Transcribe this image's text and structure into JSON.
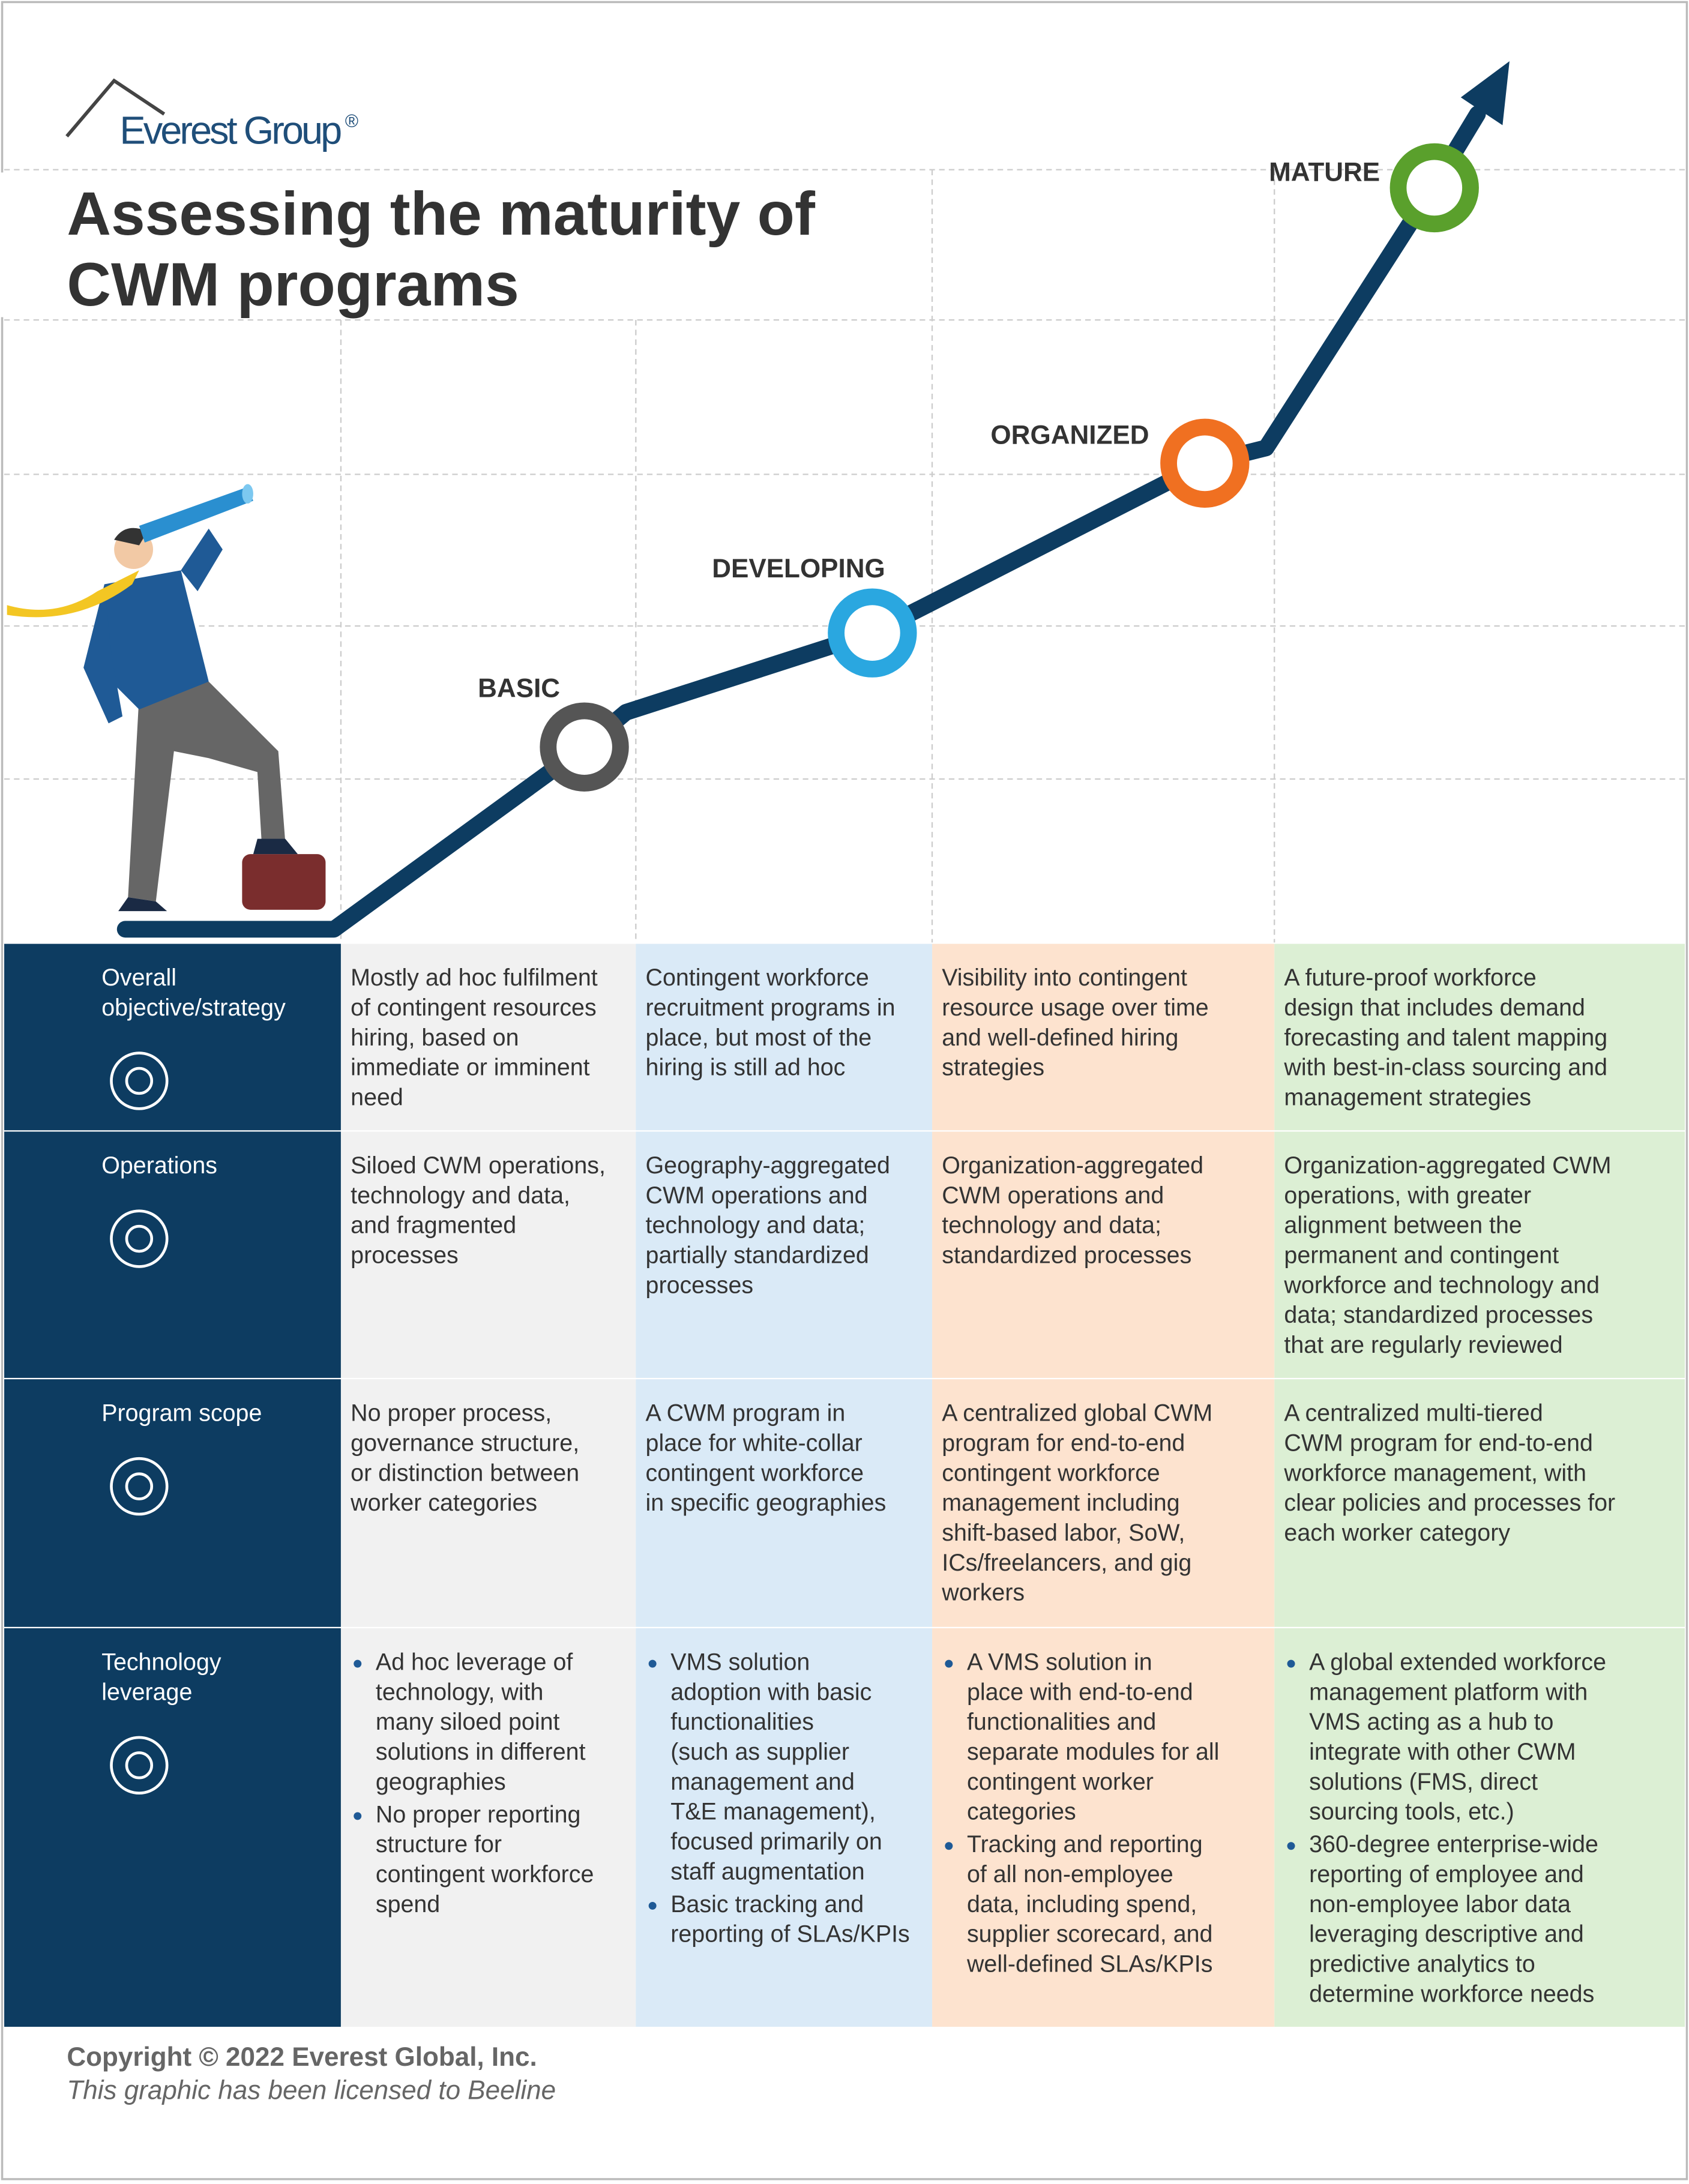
{
  "header": {
    "logo": "Everest Group",
    "logo_mark": "®",
    "title": [
      "Assessing the maturity of",
      "CWM programs"
    ]
  },
  "stages": [
    "BASIC",
    "DEVELOPING",
    "ORGANIZED",
    "MATURE"
  ],
  "table": {
    "rows": [
      {
        "header": {
          "lines": [
            "Overall",
            "objective/strategy"
          ]
        },
        "cells": [
          {
            "lines": [
              "Mostly ad hoc fulfilment",
              "of contingent resources",
              "hiring, based on",
              "immediate or imminent",
              "need"
            ]
          },
          {
            "lines": [
              "Contingent workforce",
              "recruitment programs in",
              "place, but most of the",
              "hiring is still ad hoc"
            ]
          },
          {
            "lines": [
              "Visibility into contingent",
              "resource usage over time",
              "and well-defined hiring",
              "strategies"
            ]
          },
          {
            "lines": [
              "A future-proof workforce",
              "design that includes demand",
              "forecasting and talent mapping",
              "with best-in-class sourcing and",
              "management strategies"
            ]
          }
        ]
      },
      {
        "header": {
          "lines": [
            "Operations"
          ]
        },
        "cells": [
          {
            "lines": [
              "Siloed CWM operations,",
              "technology and data,",
              "and fragmented",
              "processes"
            ]
          },
          {
            "lines": [
              "Geography-aggregated",
              "CWM operations and",
              "technology and data;",
              "partially standardized",
              "processes"
            ]
          },
          {
            "lines": [
              "Organization-aggregated",
              "CWM operations and",
              "technology and data;",
              "standardized processes"
            ]
          },
          {
            "lines": [
              "Organization-aggregated CWM",
              "operations, with greater",
              "alignment between the",
              "permanent and contingent",
              "workforce and technology and",
              "data; standardized processes",
              "that are regularly reviewed"
            ]
          }
        ]
      },
      {
        "header": {
          "lines": [
            "Program scope"
          ]
        },
        "cells": [
          {
            "lines": [
              "No proper process,",
              "governance structure,",
              "or distinction between",
              "worker categories"
            ]
          },
          {
            "lines": [
              "A CWM program in",
              "place for white-collar",
              "contingent workforce",
              "in specific geographies"
            ]
          },
          {
            "lines": [
              "A centralized global CWM",
              "program for end-to-end",
              "contingent workforce",
              "management including",
              "shift-based labor, SoW,",
              "ICs/freelancers, and gig",
              "workers"
            ]
          },
          {
            "lines": [
              "A centralized multi-tiered",
              "CWM program for end-to-end",
              "workforce management, with",
              "clear policies and processes for",
              "each worker category"
            ]
          }
        ]
      },
      {
        "header": {
          "lines": [
            "Technology",
            "leverage"
          ]
        },
        "cells": [
          {
            "bullets": [
              [
                "Ad hoc leverage of",
                "technology, with",
                "many siloed point",
                "solutions in different",
                "geographies"
              ],
              [
                "No proper reporting",
                "structure for",
                "contingent workforce",
                "spend"
              ]
            ]
          },
          {
            "bullets": [
              [
                "VMS solution",
                "adoption with basic",
                "functionalities",
                "(such as supplier",
                "management and",
                "T&E management),",
                "focused primarily on",
                "staff augmentation"
              ],
              [
                "Basic tracking and",
                "reporting of SLAs/KPIs"
              ]
            ]
          },
          {
            "bullets": [
              [
                "A VMS solution in",
                "place with end-to-end",
                "functionalities and",
                "separate modules for all",
                "contingent worker",
                "categories"
              ],
              [
                "Tracking and reporting",
                "of all non-employee",
                "data, including spend,",
                "supplier scorecard, and",
                "well-defined SLAs/KPIs"
              ]
            ]
          },
          {
            "bullets": [
              [
                "A global extended workforce",
                "management platform with",
                "VMS acting as a hub to",
                "integrate with other CWM",
                "solutions (FMS, direct",
                "sourcing tools, etc.)"
              ],
              [
                "360-degree enterprise-wide",
                "reporting of employee and",
                "non-employee labor data",
                "leveraging descriptive and",
                "predictive analytics to",
                "determine workforce needs"
              ]
            ]
          }
        ]
      }
    ]
  },
  "footer": {
    "copyright": "Copyright © 2022 Everest Global, Inc.",
    "license": "This graphic has been licensed to Beeline"
  }
}
